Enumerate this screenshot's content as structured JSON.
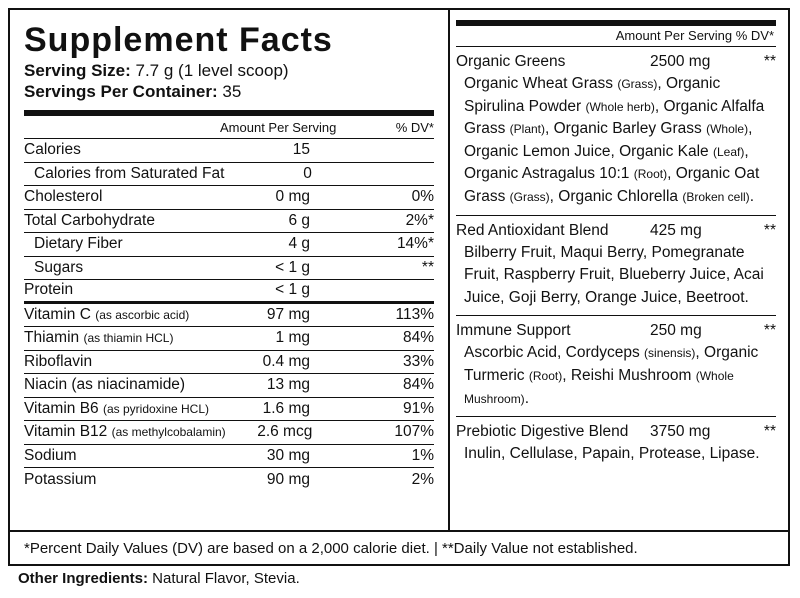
{
  "title": "Supplement Facts",
  "serving_size_label": "Serving Size:",
  "serving_size_value": "7.7 g (1 level scoop)",
  "servings_label": "Servings Per Container:",
  "servings_value": "35",
  "col_amount": "Amount Per Serving",
  "col_dv": "% DV*",
  "nutrients": [
    {
      "name": "Calories",
      "note": "",
      "amount": "15",
      "dv": "",
      "indent": false
    },
    {
      "name": "Calories from Saturated Fat",
      "note": "",
      "amount": "0",
      "dv": "",
      "indent": true
    },
    {
      "name": "Cholesterol",
      "note": "",
      "amount": "0 mg",
      "dv": "0%",
      "indent": false
    },
    {
      "name": "Total Carbohydrate",
      "note": "",
      "amount": "6 g",
      "dv": "2%*",
      "indent": false
    },
    {
      "name": "Dietary Fiber",
      "note": "",
      "amount": "4 g",
      "dv": "14%*",
      "indent": true
    },
    {
      "name": "Sugars",
      "note": "",
      "amount": "< 1 g",
      "dv": "**",
      "indent": true
    },
    {
      "name": "Protein",
      "note": "",
      "amount": "< 1 g",
      "dv": "",
      "indent": false
    },
    {
      "name": "Vitamin C",
      "note": "(as ascorbic acid)",
      "amount": "97 mg",
      "dv": "113%",
      "indent": false
    },
    {
      "name": "Thiamin",
      "note": "(as thiamin HCL)",
      "amount": "1 mg",
      "dv": "84%",
      "indent": false
    },
    {
      "name": "Riboflavin",
      "note": "",
      "amount": "0.4 mg",
      "dv": "33%",
      "indent": false
    },
    {
      "name": "Niacin (as niacinamide)",
      "note": "",
      "amount": "13 mg",
      "dv": "84%",
      "indent": false
    },
    {
      "name": "Vitamin B6",
      "note": "(as pyridoxine HCL)",
      "amount": "1.6 mg",
      "dv": "91%",
      "indent": false
    },
    {
      "name": "Vitamin B12",
      "note": "(as methylcobalamin)",
      "amount": "2.6 mcg",
      "dv": "107%",
      "indent": false
    },
    {
      "name": "Sodium",
      "note": "",
      "amount": "30 mg",
      "dv": "1%",
      "indent": false
    },
    {
      "name": "Potassium",
      "note": "",
      "amount": "90 mg",
      "dv": "2%",
      "indent": false
    }
  ],
  "right_header": "Amount Per Serving  % DV*",
  "blends": [
    {
      "name": "Organic Greens",
      "amount": "2500 mg",
      "dv": "**",
      "ingredients": "Organic Wheat Grass <small>(Grass)</small>, Organic Spirulina Powder <small>(Whole herb)</small>, Organic Alfalfa Grass <small>(Plant)</small>, Organic Barley Grass <small>(Whole)</small>, Organic Lemon Juice, Organic Kale <small>(Leaf)</small>, Organic Astragalus 10:1 <small>(Root)</small>, Organic Oat Grass <small>(Grass)</small>, Organic Chlorella <small>(Broken cell)</small>."
    },
    {
      "name": "Red Antioxidant Blend",
      "amount": "425 mg",
      "dv": "**",
      "ingredients": "Bilberry Fruit, Maqui Berry, Pomegranate Fruit, Raspberry Fruit, Blueberry Juice, Acai Juice, Goji Berry, Orange Juice, Beetroot."
    },
    {
      "name": "Immune Support",
      "amount": "250 mg",
      "dv": "**",
      "ingredients": "Ascorbic Acid, Cordyceps <small>(sinensis)</small>, Organic Turmeric <small>(Root)</small>, Reishi Mushroom <small>(Whole Mushroom)</small>."
    },
    {
      "name": "Prebiotic Digestive Blend",
      "amount": "3750 mg",
      "dv": "**",
      "ingredients": "Inulin, Cellulase, Papain, Protease, Lipase."
    }
  ],
  "footnote": "*Percent Daily Values (DV) are based on a 2,000 calorie diet.  |  **Daily Value not established.",
  "other_label": "Other Ingredients:",
  "other_value": " Natural Flavor, Stevia."
}
